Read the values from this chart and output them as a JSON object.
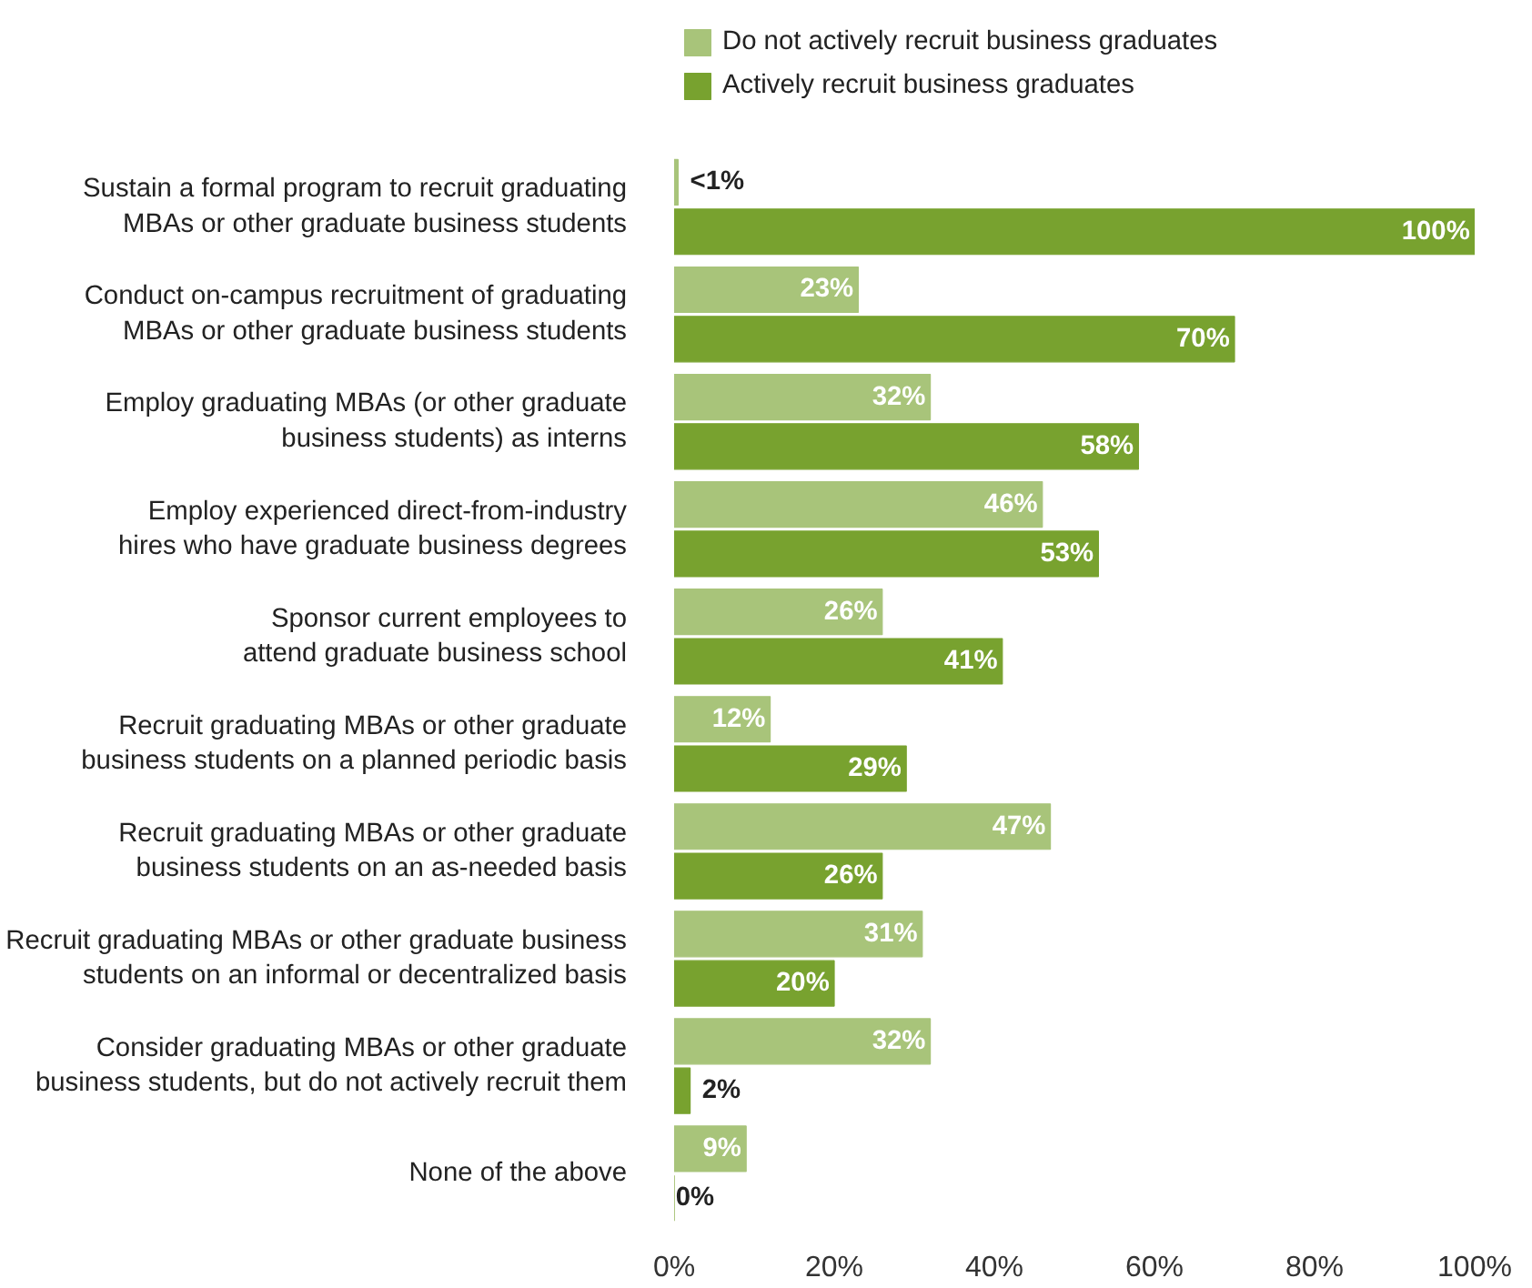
{
  "chart_data": {
    "type": "bar",
    "orientation": "horizontal",
    "categories": [
      "Sustain a formal program to recruit graduating\nMBAs or other graduate business students",
      "Conduct on-campus recruitment of graduating\nMBAs or other graduate business students",
      "Employ graduating MBAs (or other graduate\nbusiness students) as interns",
      "Employ experienced direct-from-industry\nhires who have graduate business degrees",
      "Sponsor current employees to\nattend graduate business school",
      "Recruit graduating MBAs or other graduate\nbusiness students on a planned periodic basis",
      "Recruit graduating MBAs or other graduate\nbusiness students on an as-needed basis",
      "Recruit graduating MBAs or other graduate business\nstudents on an informal or decentralized basis",
      "Consider graduating MBAs or other graduate\nbusiness students, but do not actively recruit them",
      "None of the above"
    ],
    "series": [
      {
        "name": "Do not actively recruit business graduates",
        "color": "#a8c47a",
        "values": [
          0.5,
          23,
          32,
          46,
          26,
          12,
          47,
          31,
          32,
          9
        ],
        "value_labels": [
          "<1%",
          "23%",
          "32%",
          "46%",
          "26%",
          "12%",
          "47%",
          "31%",
          "32%",
          "9%"
        ]
      },
      {
        "name": "Actively recruit business graduates",
        "color": "#78a22f",
        "values": [
          100,
          70,
          58,
          53,
          41,
          29,
          26,
          20,
          2,
          0
        ],
        "value_labels": [
          "100%",
          "70%",
          "58%",
          "53%",
          "41%",
          "29%",
          "26%",
          "20%",
          "2%",
          "0%"
        ]
      }
    ],
    "xlim": [
      0,
      100
    ],
    "xticks": [
      {
        "value": 0,
        "label": "0%"
      },
      {
        "value": 20,
        "label": "20%"
      },
      {
        "value": 40,
        "label": "40%"
      },
      {
        "value": 60,
        "label": "60%"
      },
      {
        "value": 80,
        "label": "80%"
      },
      {
        "value": 100,
        "label": "100%"
      }
    ],
    "grid": false,
    "legend": "top"
  }
}
